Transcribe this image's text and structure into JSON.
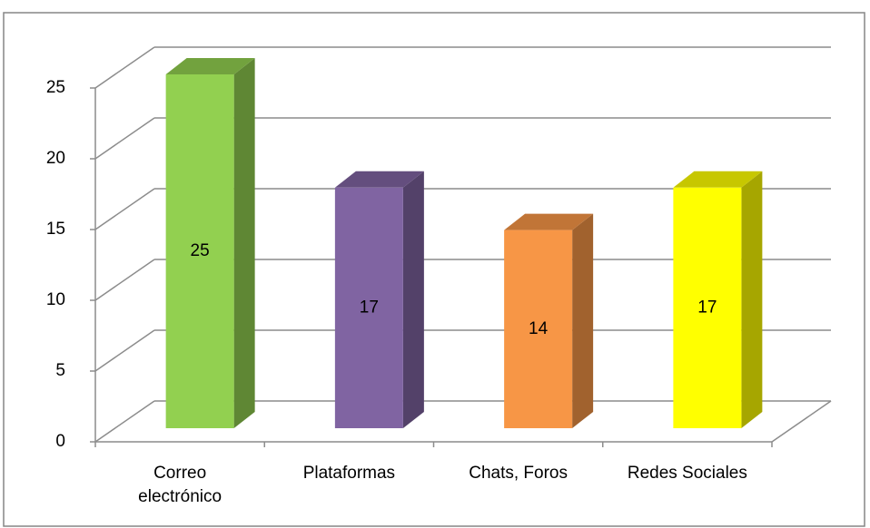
{
  "chart_data": {
    "type": "bar3d",
    "categories": [
      "Correo electrónico",
      "Plataformas",
      "Chats, Foros",
      "Redes Sociales"
    ],
    "values": [
      25,
      17,
      14,
      17
    ],
    "colors": [
      "#92d050",
      "#8064a2",
      "#f79646",
      "#ffff00"
    ],
    "ylim": [
      0,
      25
    ],
    "yticks": [
      0,
      5,
      10,
      15,
      20,
      25
    ],
    "grid": true
  }
}
